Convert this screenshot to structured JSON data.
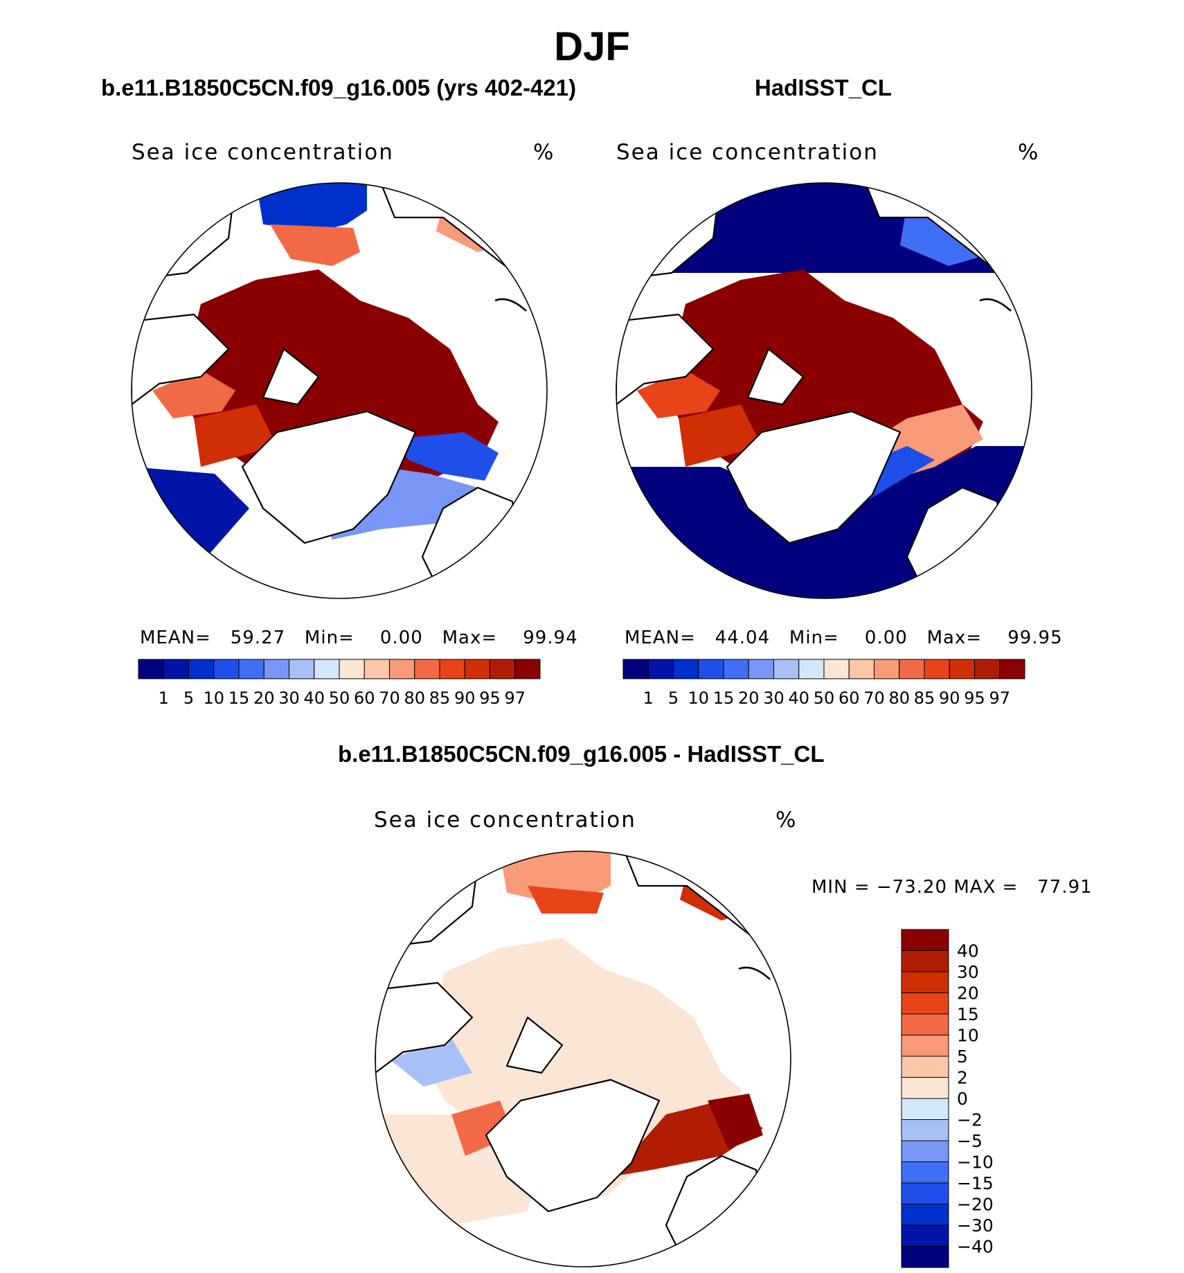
{
  "page_title": "DJF",
  "colors": {
    "ice_sequential": [
      "#00007f",
      "#0015a8",
      "#0030cc",
      "#1f4fe8",
      "#3f6ff5",
      "#7896f5",
      "#a8c0f5",
      "#d4e6fa",
      "#fbe6d6",
      "#fcc6a8",
      "#f99a78",
      "#f26a45",
      "#e84419",
      "#d02f05",
      "#b01d04",
      "#8a0000"
    ],
    "diff_diverging": [
      "#00007f",
      "#0015a8",
      "#0030cc",
      "#1f4fe8",
      "#3f6ff5",
      "#7896f5",
      "#a8c0f5",
      "#d4e6fa",
      "#fbe6d6",
      "#fcc6a8",
      "#f99a78",
      "#f26a45",
      "#e84419",
      "#d02f05",
      "#b01d04",
      "#8a0000"
    ],
    "coastline": "#000000",
    "land": "#ffffff"
  },
  "chart_data": [
    {
      "type": "heatmap",
      "projection": "north-polar-stereographic",
      "title": "b.e11.B1850C5CN.f09_g16.005 (yrs 402-421)",
      "variable": "Sea ice concentration",
      "units": "%",
      "stats": {
        "mean_label": "MEAN=",
        "mean": "59.27",
        "min_label": "Min=",
        "min": "0.00",
        "max_label": "Max=",
        "max": "99.94"
      },
      "colorbar_ticks": [
        "1",
        "5",
        "10",
        "15",
        "20",
        "30",
        "40",
        "50",
        "60",
        "70",
        "80",
        "85",
        "90",
        "95",
        "97"
      ]
    },
    {
      "type": "heatmap",
      "projection": "north-polar-stereographic",
      "title": "HadISST_CL",
      "variable": "Sea ice concentration",
      "units": "%",
      "stats": {
        "mean_label": "MEAN=",
        "mean": "44.04",
        "min_label": "Min=",
        "min": "0.00",
        "max_label": "Max=",
        "max": "99.95"
      },
      "colorbar_ticks": [
        "1",
        "5",
        "10",
        "15",
        "20",
        "30",
        "40",
        "50",
        "60",
        "70",
        "80",
        "85",
        "90",
        "95",
        "97"
      ]
    },
    {
      "type": "heatmap",
      "projection": "north-polar-stereographic",
      "title": "b.e11.B1850C5CN.f09_g16.005 - HadISST_CL",
      "variable": "Sea ice concentration",
      "units": "%",
      "stats_text": "MIN = −73.20 MAX =   77.91",
      "colorbar_ticks": [
        "40",
        "30",
        "20",
        "15",
        "10",
        "5",
        "2",
        "0",
        "−2",
        "−5",
        "−10",
        "−15",
        "−20",
        "−30",
        "−40"
      ]
    }
  ]
}
